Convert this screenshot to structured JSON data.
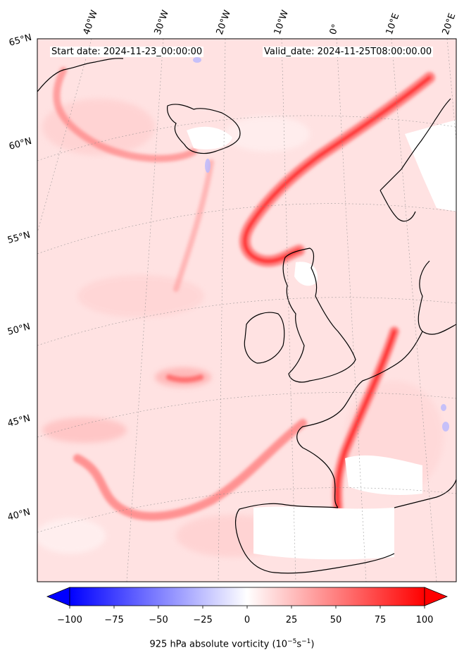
{
  "header": {
    "start_date": "Start date: 2024-11-23_00:00:00",
    "valid_date": "Valid_date: 2024-11-25T08:00:00.00"
  },
  "longitude_labels": [
    "40°W",
    "30°W",
    "20°W",
    "10°W",
    "0°",
    "10°E",
    "20°E"
  ],
  "latitude_labels": [
    "65°N",
    "60°N",
    "55°N",
    "50°N",
    "45°N",
    "40°N"
  ],
  "colorbar": {
    "title_prefix": "925 hPa absolute vorticity (10",
    "title_unit_exp1": "−5",
    "title_mid": "s",
    "title_unit_exp2": "−1",
    "title_suffix": ")",
    "ticks": [
      "−100",
      "−75",
      "−50",
      "−25",
      "0",
      "25",
      "50",
      "75",
      "100"
    ],
    "tick_values": [
      -100,
      -75,
      -50,
      -25,
      0,
      25,
      50,
      75,
      100
    ],
    "range": [
      -100,
      100
    ],
    "cmap": "bwr",
    "extend": "both"
  },
  "colors": {
    "background_field": "#ffe3e3",
    "strong_positive": "#ff2a2a",
    "negative": "#9999ff",
    "coastline": "#000000"
  }
}
